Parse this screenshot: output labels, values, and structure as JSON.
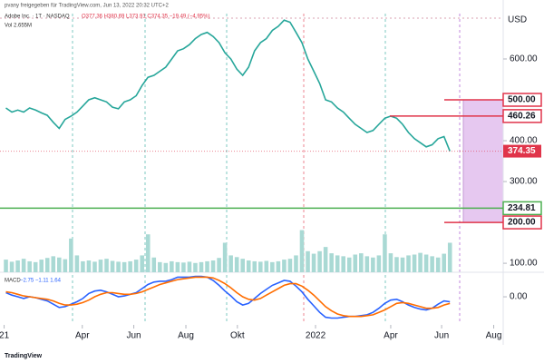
{
  "header": {
    "byline": "pvany freigegeben für TradingView.com, Jun 13, 2022 20:32 UTC+2",
    "symbol": "Adobe Inc. · 1T · NASDAQ",
    "ohlc": "O377.36 H380.69 L373.91 C374.35 −19.49 (−4.95%)",
    "volume": "Vol 2.655M",
    "macd_label": "MACD",
    "macd_values": "−2.75 −1.11 1.64",
    "logo": "TradingView"
  },
  "chart_data": [
    {
      "type": "line",
      "currency": "USD",
      "color": "#26a69a",
      "x": [
        0,
        1,
        2,
        3,
        4,
        5,
        6,
        7,
        8,
        9,
        10,
        11,
        12,
        13,
        14,
        15,
        16,
        17,
        18,
        19,
        20,
        21,
        22,
        23,
        24,
        25,
        26,
        27,
        28,
        29,
        30,
        31,
        32,
        33,
        34,
        35,
        36,
        37,
        38,
        39,
        40,
        41,
        42,
        43,
        44,
        45,
        46,
        47,
        48,
        49,
        50,
        51,
        52,
        53,
        54,
        55,
        56,
        57,
        58,
        59,
        60,
        61,
        62,
        63,
        64,
        65,
        66,
        67,
        68,
        69,
        70,
        71,
        72,
        73,
        74,
        75
      ],
      "values": [
        480,
        470,
        475,
        470,
        480,
        475,
        468,
        462,
        445,
        430,
        452,
        460,
        470,
        485,
        500,
        505,
        500,
        495,
        482,
        478,
        495,
        500,
        510,
        535,
        555,
        560,
        570,
        580,
        600,
        620,
        625,
        635,
        650,
        660,
        665,
        655,
        640,
        615,
        600,
        575,
        560,
        580,
        620,
        640,
        650,
        670,
        680,
        695,
        690,
        665,
        640,
        600,
        570,
        540,
        500,
        495,
        480,
        470,
        455,
        440,
        430,
        420,
        425,
        440,
        455,
        460,
        455,
        440,
        420,
        405,
        395,
        385,
        390,
        405,
        410,
        374.35
      ],
      "xlim": [
        -1,
        84
      ],
      "ylim": [
        78,
        711
      ],
      "yticks": [
        {
          "value": 100,
          "label": "100.00"
        },
        {
          "value": 300,
          "label": "300.00"
        },
        {
          "value": 400,
          "label": "400.00"
        },
        {
          "value": 600,
          "label": "600.00"
        }
      ],
      "levels": [
        {
          "value": 500,
          "label": "500.00",
          "color": "#e0344a"
        },
        {
          "value": 460.26,
          "label": "460.26",
          "color": "#e0344a"
        },
        {
          "value": 234.81,
          "label": "234.81",
          "color": "#4caf50"
        },
        {
          "value": 200,
          "label": "200.00",
          "color": "#e0344a"
        }
      ]
    },
    {
      "type": "bar",
      "color": "#a9d9d4",
      "x": [
        0,
        1,
        2,
        3,
        4,
        5,
        6,
        7,
        8,
        9,
        10,
        11,
        12,
        13,
        14,
        15,
        16,
        17,
        18,
        19,
        20,
        21,
        22,
        23,
        24,
        25,
        26,
        27,
        28,
        29,
        30,
        31,
        32,
        33,
        34,
        35,
        36,
        37,
        38,
        39,
        40,
        41,
        42,
        43,
        44,
        45,
        46,
        47,
        48,
        49,
        50,
        51,
        52,
        53,
        54,
        55,
        56,
        57,
        58,
        59,
        60,
        61,
        62,
        63,
        64,
        65,
        66,
        67,
        68,
        69,
        70,
        71,
        72,
        73,
        74,
        75
      ],
      "values": [
        3,
        2.5,
        2.8,
        3.2,
        2.6,
        2.4,
        3,
        3.4,
        3.8,
        3.5,
        3.1,
        8,
        4,
        2.6,
        2.8,
        2.5,
        3,
        3.2,
        2.7,
        2.5,
        2.4,
        2.6,
        3,
        4,
        9,
        3.5,
        2.4,
        2.2,
        2.6,
        2.4,
        2.3,
        2.5,
        2.2,
        2.4,
        2.6,
        2.8,
        3.4,
        7,
        4,
        3.6,
        3.2,
        2.8,
        2.6,
        2.5,
        2.7,
        2.4,
        2.6,
        3,
        3.2,
        4,
        10,
        5,
        4.4,
        5,
        6,
        4.5,
        4,
        3.8,
        3.5,
        4.2,
        4.5,
        3.8,
        3.5,
        4,
        9,
        4.5,
        3.6,
        3.5,
        4,
        4.2,
        4.6,
        4.2,
        3.8,
        3.5,
        4.4,
        7
      ],
      "xlim": [
        -1,
        84
      ],
      "ylim": [
        0,
        14
      ]
    },
    {
      "type": "line",
      "x": [
        0,
        1,
        2,
        3,
        4,
        5,
        6,
        7,
        8,
        9,
        10,
        11,
        12,
        13,
        14,
        15,
        16,
        17,
        18,
        19,
        20,
        21,
        22,
        23,
        24,
        25,
        26,
        27,
        28,
        29,
        30,
        31,
        32,
        33,
        34,
        35,
        36,
        37,
        38,
        39,
        40,
        41,
        42,
        43,
        44,
        45,
        46,
        47,
        48,
        49,
        50,
        51,
        52,
        53,
        54,
        55,
        56,
        57,
        58,
        59,
        60,
        61,
        62,
        63,
        64,
        65,
        66,
        67,
        68,
        69,
        70,
        71,
        72,
        73,
        74,
        75
      ],
      "series": [
        {
          "color": "#2962ff",
          "values": [
            5,
            2,
            0,
            -2,
            0,
            -1,
            -3,
            -5,
            -9,
            -13,
            -12,
            -9,
            -6,
            -2,
            4,
            7,
            8,
            6,
            3,
            0,
            1,
            3,
            5,
            10,
            15,
            18,
            19,
            19,
            21,
            24,
            24,
            24,
            25,
            25,
            24,
            20,
            14,
            7,
            1,
            -6,
            -10,
            -8,
            -2,
            4,
            9,
            14,
            17,
            20,
            19,
            13,
            6,
            -3,
            -11,
            -19,
            -25,
            -26,
            -26,
            -25,
            -24,
            -24,
            -23,
            -22,
            -19,
            -14,
            -8,
            -4,
            -3,
            -6,
            -10,
            -13,
            -15,
            -16,
            -14,
            -9,
            -5,
            -6
          ]
        },
        {
          "color": "#ff6d00",
          "values": [
            6,
            5,
            3,
            1,
            0,
            -1,
            -2,
            -3,
            -5,
            -8,
            -10,
            -10,
            -9,
            -7,
            -4,
            0,
            3,
            5,
            5,
            4,
            3,
            3,
            4,
            6,
            9,
            12,
            15,
            17,
            19,
            21,
            22,
            23,
            24,
            24,
            24,
            23,
            20,
            16,
            11,
            5,
            0,
            -3,
            -4,
            -2,
            2,
            6,
            10,
            14,
            16,
            16,
            13,
            8,
            2,
            -5,
            -12,
            -17,
            -21,
            -23,
            -24,
            -24,
            -24,
            -23,
            -22,
            -19,
            -16,
            -12,
            -8,
            -7,
            -8,
            -10,
            -12,
            -14,
            -14,
            -13,
            -10,
            -8
          ]
        }
      ],
      "xlim": [
        -1,
        84
      ],
      "ylim": [
        -31,
        30
      ],
      "yticks": [
        {
          "value": 0,
          "label": "0.00"
        }
      ],
      "xticks": [
        {
          "value": -0.3,
          "label": "21"
        },
        {
          "value": 12.9,
          "label": "Apr"
        },
        {
          "value": 21.6,
          "label": "Jun"
        },
        {
          "value": 30.4,
          "label": "Aug"
        },
        {
          "value": 39.1,
          "label": "Okt"
        },
        {
          "value": 52.3,
          "label": "2022"
        },
        {
          "value": 65,
          "label": "Apr"
        },
        {
          "value": 73.6,
          "label": "Jun"
        },
        {
          "value": 82.4,
          "label": "Aug"
        }
      ]
    }
  ]
}
